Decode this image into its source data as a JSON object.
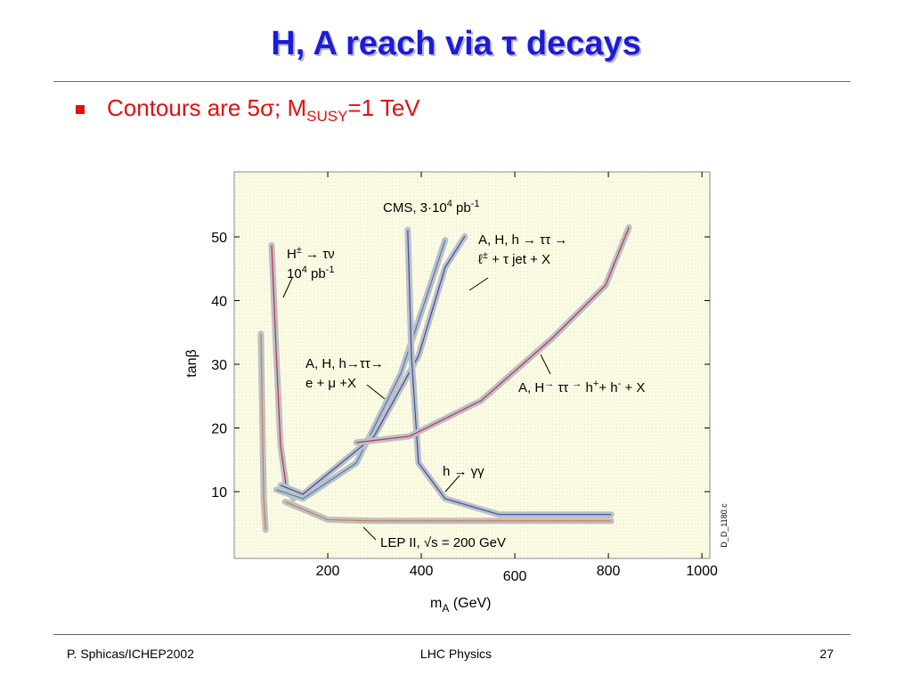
{
  "header": {
    "title": "H, A reach via τ decays"
  },
  "bullet": {
    "text": "Contours are 5σ; M",
    "sub": "SUSY",
    "rest": "=1 TeV"
  },
  "chart_data": {
    "type": "line",
    "xlabel": {
      "main": "m",
      "sub": "A",
      "rest": " (GeV)"
    },
    "ylabel": "tanβ",
    "xlim": [
      0,
      1015
    ],
    "ylim": [
      0,
      60
    ],
    "xticks": [
      200,
      400,
      600,
      800,
      1000
    ],
    "yticks": [
      10,
      20,
      30,
      40,
      50
    ],
    "series": [
      {
        "color": "#c0304a",
        "x": [
          80,
          90,
          99,
          112,
          127
        ],
        "values": [
          48.7,
          31.3,
          17.3,
          10.3,
          8.9
        ]
      },
      {
        "color": "#4a7fb0",
        "x": [
          90,
          147,
          261,
          356,
          413,
          451
        ],
        "values": [
          10.3,
          8.9,
          14.5,
          28.5,
          41,
          49.5
        ]
      },
      {
        "color": "#3a4fa0",
        "x": [
          99,
          147,
          299,
          394,
          451,
          493
        ],
        "values": [
          11,
          9.6,
          18.7,
          31.3,
          45.2,
          50.1
        ]
      },
      {
        "color": "#3a4fa0",
        "x": [
          371,
          379,
          394,
          451,
          566,
          806
        ],
        "values": [
          51.1,
          31.3,
          14.5,
          8.9,
          6.4,
          6.4
        ]
      },
      {
        "color": "#c0304a",
        "x": [
          261,
          375,
          528,
          680,
          794,
          844
        ],
        "values": [
          17.7,
          18.7,
          24.3,
          34.1,
          42.4,
          51.5
        ]
      },
      {
        "color": "#d08040",
        "x": [
          57,
          63,
          67,
          null,
          109,
          200,
          300,
          806
        ],
        "values": [
          34.8,
          9,
          4,
          null,
          8.4,
          5.6,
          5.4,
          5.4
        ]
      }
    ],
    "annotations": [
      [
        [
          "CMS, 3·10",
          "4",
          " pb",
          "-1"
        ]
      ],
      [
        [
          "H",
          "±",
          " → τν"
        ],
        [
          "10",
          "4",
          " pb",
          "-1"
        ]
      ],
      [
        [
          "A, H, h → ττ →"
        ],
        [
          "ℓ",
          "±",
          " + τ jet +  X"
        ]
      ],
      [
        [
          "A, H, h→ττ→"
        ],
        [
          "e + μ +X"
        ]
      ],
      [
        [
          "A, H",
          "→",
          " ττ ",
          "→",
          " h",
          "+",
          "+ h",
          "-",
          " + X"
        ]
      ],
      [
        [
          "h → γγ"
        ]
      ],
      [
        [
          "LEP II, √s = 200 GeV"
        ]
      ]
    ],
    "stamp": "D_D_1180.c"
  },
  "footer": {
    "left": "P. Sphicas/ICHEP2002",
    "center": "LHC Physics",
    "right": "27"
  }
}
